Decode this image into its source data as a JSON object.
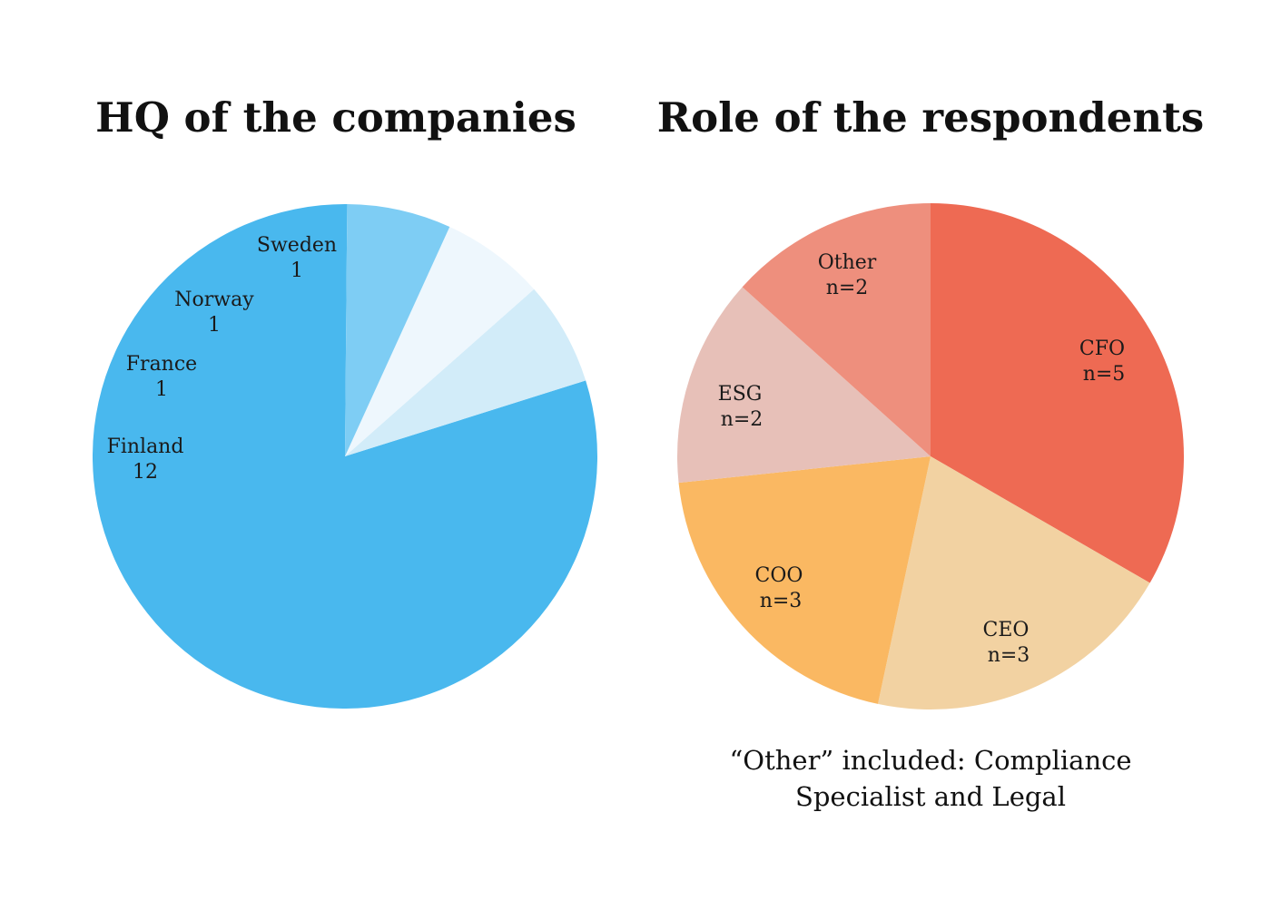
{
  "chart_data": [
    {
      "type": "pie",
      "title": "HQ of the companies",
      "slices": [
        {
          "label": "Finland",
          "value": 12,
          "value_text": "12",
          "color": "#49B8EE"
        },
        {
          "label": "France",
          "value": 1,
          "value_text": "1",
          "color": "#D2ECF9"
        },
        {
          "label": "Norway",
          "value": 1,
          "value_text": "1",
          "color": "#EEF7FD"
        },
        {
          "label": "Sweden",
          "value": 1,
          "value_text": "1",
          "color": "#7ECDF4"
        }
      ]
    },
    {
      "type": "pie",
      "title": "Role of the respondents",
      "slices": [
        {
          "label": "CFO",
          "value": 5,
          "value_text": "n=5",
          "color": "#EE6A53"
        },
        {
          "label": "CEO",
          "value": 3,
          "value_text": "n=3",
          "color": "#F2D2A2"
        },
        {
          "label": "COO",
          "value": 3,
          "value_text": "n=3",
          "color": "#FAB862"
        },
        {
          "label": "ESG",
          "value": 2,
          "value_text": "n=2",
          "color": "#E7C0B8"
        },
        {
          "label": "Other",
          "value": 2,
          "value_text": "n=2",
          "color": "#EE8F7D"
        }
      ],
      "footnote": "“Other” included: Compliance Specialist and Legal"
    }
  ]
}
